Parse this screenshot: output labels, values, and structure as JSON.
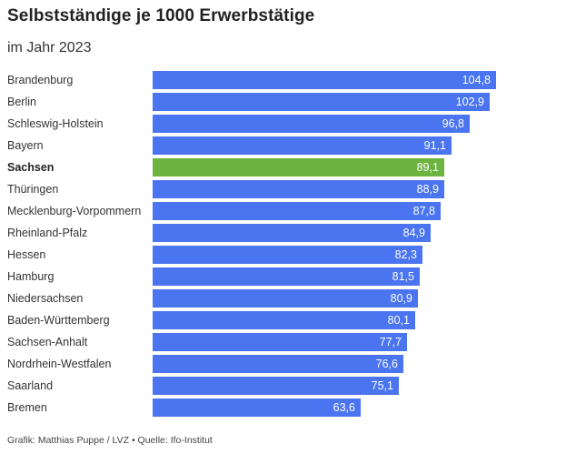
{
  "title": "Selbstständige je 1000 Erwerbstätige",
  "subtitle": "im Jahr 2023",
  "footer": "Grafik: Matthias Puppe / LVZ • Quelle: Ifo-Institut",
  "colors": {
    "bar": "#4a74f0",
    "highlight": "#6db33f"
  },
  "chart_data": {
    "type": "bar",
    "orientation": "horizontal",
    "title": "Selbstständige je 1000 Erwerbstätige",
    "subtitle": "im Jahr 2023",
    "xlim": [
      0,
      104.8
    ],
    "grid": false,
    "highlight": "Sachsen",
    "categories": [
      "Brandenburg",
      "Berlin",
      "Schleswig-Holstein",
      "Bayern",
      "Sachsen",
      "Thüringen",
      "Mecklenburg-Vorpommern",
      "Rheinland-Pfalz",
      "Hessen",
      "Hamburg",
      "Niedersachsen",
      "Baden-Württemberg",
      "Sachsen-Anhalt",
      "Nordrhein-Westfalen",
      "Saarland",
      "Bremen"
    ],
    "values": [
      104.8,
      102.9,
      96.8,
      91.1,
      89.1,
      88.9,
      87.8,
      84.9,
      82.3,
      81.5,
      80.9,
      80.1,
      77.7,
      76.6,
      75.1,
      63.6
    ],
    "labels": [
      "104,8",
      "102,9",
      "96,8",
      "91,1",
      "89,1",
      "88,9",
      "87,8",
      "84,9",
      "82,3",
      "81,5",
      "80,9",
      "80,1",
      "77,7",
      "76,6",
      "75,1",
      "63,6"
    ]
  }
}
